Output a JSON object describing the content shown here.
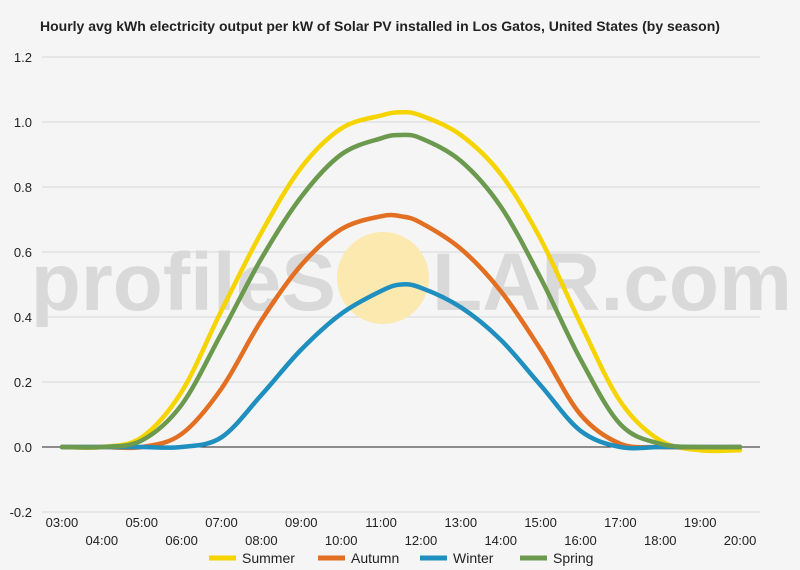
{
  "title": "Hourly avg kWh electricity output per kW of Solar PV installed in Los Gatos, United States (by season)",
  "watermark": {
    "left": "profileS",
    "right": "LAR.com",
    "sun_color": "#fbe9b0"
  },
  "chart_data": {
    "type": "line",
    "title": "Hourly avg kWh electricity output per kW of Solar PV installed in Los Gatos, United States (by season)",
    "xlabel": "",
    "ylabel": "",
    "x": [
      3,
      4,
      5,
      6,
      7,
      8,
      9,
      10,
      11,
      11.5,
      12,
      13,
      14,
      15,
      16,
      17,
      18,
      19,
      20
    ],
    "xlim": [
      2.5,
      20.5
    ],
    "ylim": [
      -0.2,
      1.2
    ],
    "yticks": [
      "-0.2",
      "0.0",
      "0.2",
      "0.4",
      "0.6",
      "0.8",
      "1.0",
      "1.2"
    ],
    "ytick_values": [
      -0.2,
      0.0,
      0.2,
      0.4,
      0.6,
      0.8,
      1.0,
      1.2
    ],
    "xticks": [
      "03:00",
      "04:00",
      "05:00",
      "06:00",
      "07:00",
      "08:00",
      "09:00",
      "10:00",
      "11:00",
      "12:00",
      "13:00",
      "14:00",
      "15:00",
      "16:00",
      "17:00",
      "18:00",
      "19:00",
      "20:00"
    ],
    "xtick_values": [
      3,
      4,
      5,
      6,
      7,
      8,
      9,
      10,
      11,
      12,
      13,
      14,
      15,
      16,
      17,
      18,
      19,
      20
    ],
    "grid": true,
    "legend_position": "bottom",
    "series": [
      {
        "name": "Summer",
        "color": "#f5d400",
        "values": [
          0.0,
          0.0,
          0.03,
          0.17,
          0.42,
          0.66,
          0.86,
          0.98,
          1.02,
          1.03,
          1.02,
          0.96,
          0.84,
          0.64,
          0.38,
          0.14,
          0.02,
          -0.01,
          -0.01
        ]
      },
      {
        "name": "Autumn",
        "color": "#e36f22",
        "values": [
          0.0,
          0.0,
          0.0,
          0.04,
          0.18,
          0.39,
          0.56,
          0.67,
          0.71,
          0.71,
          0.69,
          0.61,
          0.48,
          0.3,
          0.1,
          0.01,
          0.0,
          0.0,
          0.0
        ]
      },
      {
        "name": "Winter",
        "color": "#1f8fbf",
        "values": [
          0.0,
          0.0,
          0.0,
          0.0,
          0.03,
          0.16,
          0.3,
          0.41,
          0.48,
          0.5,
          0.49,
          0.43,
          0.33,
          0.19,
          0.05,
          0.0,
          0.0,
          0.0,
          0.0
        ]
      },
      {
        "name": "Spring",
        "color": "#6b9a4f",
        "values": [
          0.0,
          0.0,
          0.02,
          0.13,
          0.35,
          0.58,
          0.77,
          0.9,
          0.95,
          0.96,
          0.95,
          0.88,
          0.74,
          0.52,
          0.27,
          0.07,
          0.01,
          0.0,
          0.0
        ]
      }
    ]
  }
}
